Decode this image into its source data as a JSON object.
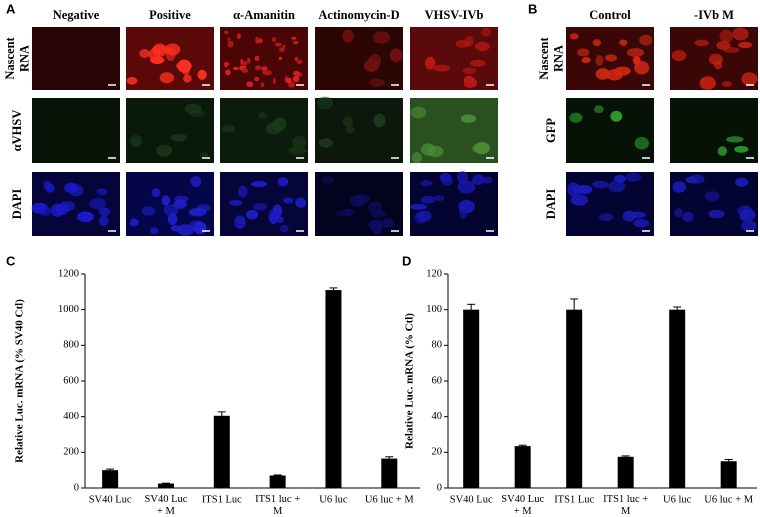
{
  "panels": [
    {
      "label": "A",
      "columns": [
        "Negative",
        "Positive",
        "α-Amanitin",
        "Actinomycin-D",
        "VHSV-IVb"
      ],
      "rows": [
        "Nascent\nRNA",
        "αVHSV",
        "DAPI"
      ]
    },
    {
      "label": "B",
      "columns": [
        "Control",
        "-IVb M"
      ],
      "rows": [
        "Nascent\nRNA",
        "GFP",
        "DAPI"
      ]
    }
  ],
  "chart_data": [
    {
      "type": "bar",
      "panel_label": "C",
      "ylabel": "Relative Luc. mRNA  (% SV40 Ctl)",
      "categories": [
        "SV40 Luc",
        "SV40 Luc\n+ M",
        "ITS1 Luc",
        "ITS1 luc +\nM",
        "U6 luc",
        "U6 luc + M"
      ],
      "values": [
        100,
        25,
        405,
        70,
        1110,
        165
      ],
      "errors": [
        6,
        2,
        22,
        3,
        12,
        10
      ],
      "color": "#000000",
      "ylim": [
        0,
        1200
      ],
      "yticks": [
        0,
        200,
        400,
        600,
        800,
        1000,
        1200
      ]
    },
    {
      "type": "bar",
      "panel_label": "D",
      "ylabel": "Relative Luc. mRNA  (% Ctl)",
      "categories": [
        "SV40 Luc",
        "SV40 Luc\n+ M",
        "ITS1 Luc",
        "ITS1 luc +\nM",
        "U6 luc",
        "U6 luc + M"
      ],
      "values": [
        100,
        23.5,
        100,
        17.5,
        100,
        15
      ],
      "errors": [
        3,
        0.5,
        6,
        0.5,
        1.5,
        1
      ],
      "color": "#000000",
      "ylim": [
        0,
        120
      ],
      "yticks": [
        0,
        20,
        40,
        60,
        80,
        100,
        120
      ]
    }
  ]
}
